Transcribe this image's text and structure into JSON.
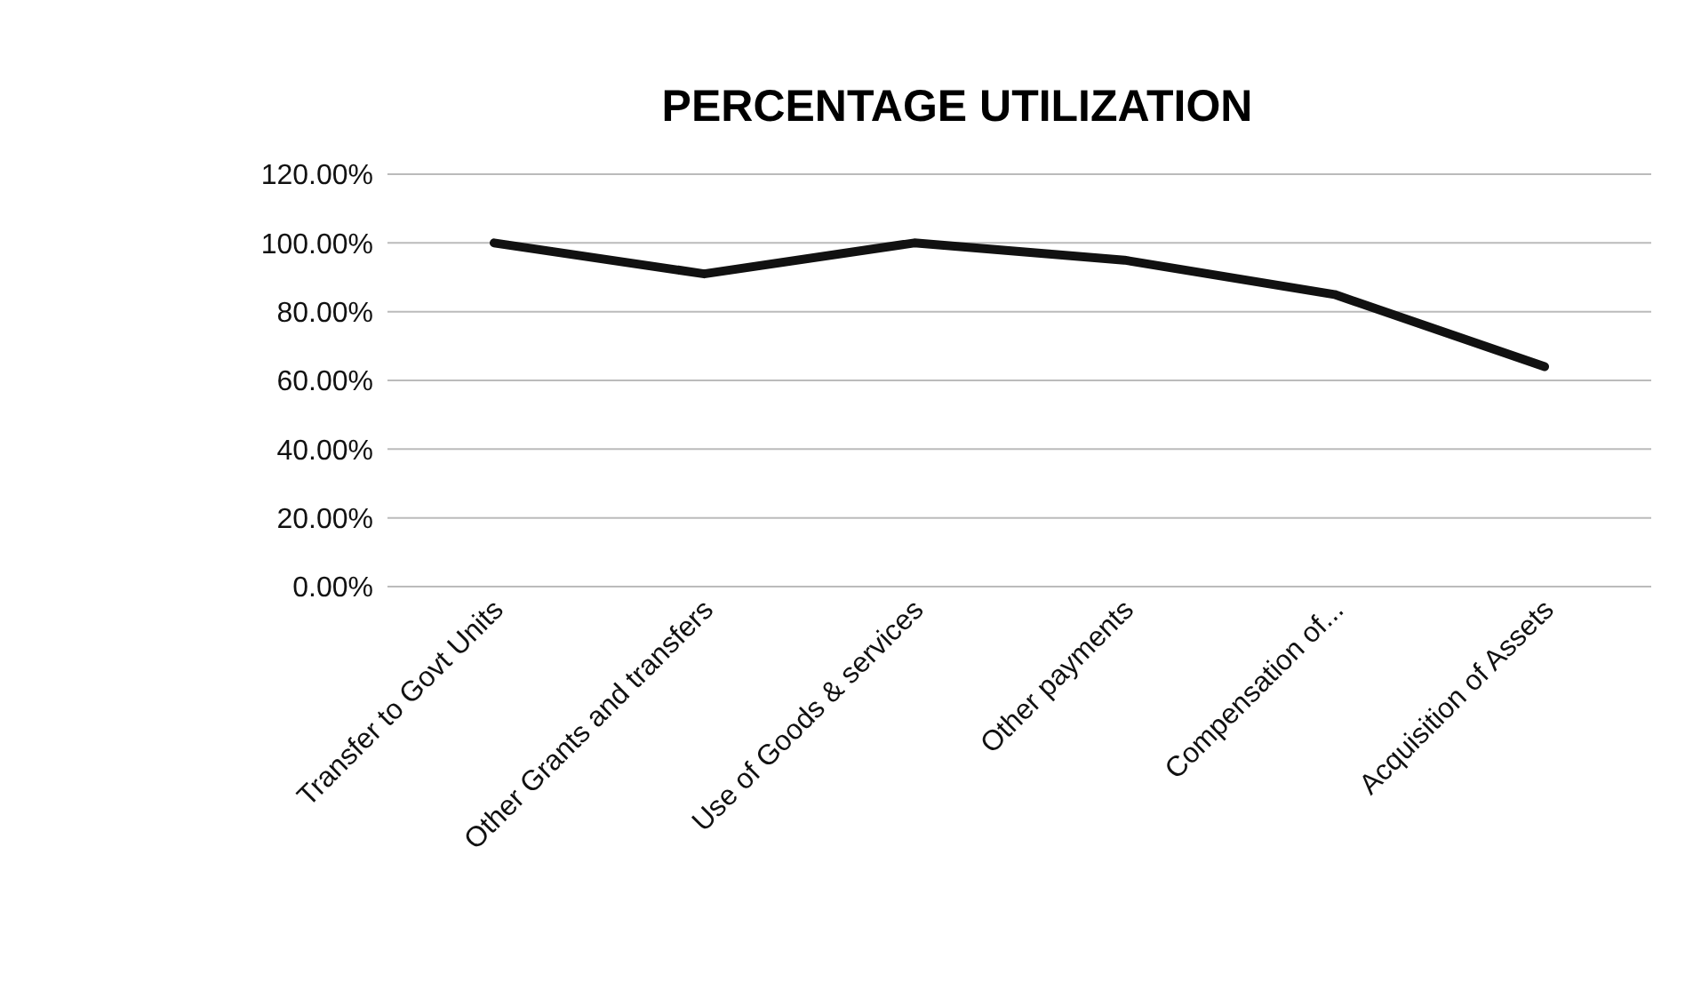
{
  "chart_data": {
    "type": "line",
    "title": "PERCENTAGE UTILIZATION",
    "categories": [
      "Transfer to Govt Units",
      "Other Grants and transfers",
      "Use of Goods & services",
      "Other payments",
      "Compensation of...",
      "Acquisition of Assets"
    ],
    "series": [
      {
        "color": "#111111",
        "values": [
          100,
          91,
          100,
          95,
          85,
          64
        ]
      }
    ],
    "ylim": [
      0,
      120
    ],
    "yticks": [
      {
        "value": 0,
        "label": "0.00%"
      },
      {
        "value": 20,
        "label": "20.00%"
      },
      {
        "value": 40,
        "label": "40.00%"
      },
      {
        "value": 60,
        "label": "60.00%"
      },
      {
        "value": 80,
        "label": "80.00%"
      },
      {
        "value": 100,
        "label": "100.00%"
      },
      {
        "value": 120,
        "label": "120.00%"
      }
    ],
    "grid": "y",
    "legend": false,
    "marker": "none",
    "line_style": "solid"
  }
}
